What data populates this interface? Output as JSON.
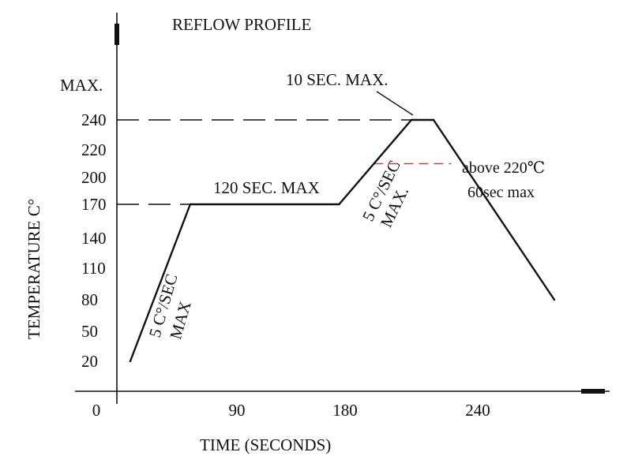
{
  "chart_data": {
    "type": "line",
    "title": "REFLOW PROFILE",
    "xlabel": "TIME (SECONDS)",
    "ylabel": "TEMPERATURE  C°",
    "x_ticks": [
      "0",
      "90",
      "180",
      "240"
    ],
    "y_ticks": [
      "MAX.",
      "240",
      "220",
      "200",
      "170",
      "140",
      "110",
      "80",
      "50",
      "20"
    ],
    "series": [
      {
        "x": [
          10,
          55,
          175,
          210,
          220,
          300
        ],
        "y": [
          20,
          170,
          170,
          240,
          240,
          80
        ]
      }
    ],
    "reference_lines": [
      {
        "y": 240,
        "x_end": 215,
        "color": "#111111",
        "style": "dashed"
      },
      {
        "y": 170,
        "x_end": 55,
        "color": "#111111",
        "style": "dashed"
      },
      {
        "y": 210,
        "x_start": 193,
        "x_end": 228,
        "color": "#d23c3c",
        "style": "dashed"
      }
    ],
    "annotations": {
      "peak_time": "10 SEC. MAX.",
      "soak_time": "120 SEC. MAX",
      "ramp_up_1_line1": "5 C°/SEC",
      "ramp_up_1_line2": "MAX",
      "ramp_up_2_line1": "5 C°/SEC",
      "ramp_up_2_line2": "MAX.",
      "above_liquidus_line1": "above 220℃",
      "above_liquidus_line2": "60sec max"
    },
    "grid": false
  }
}
